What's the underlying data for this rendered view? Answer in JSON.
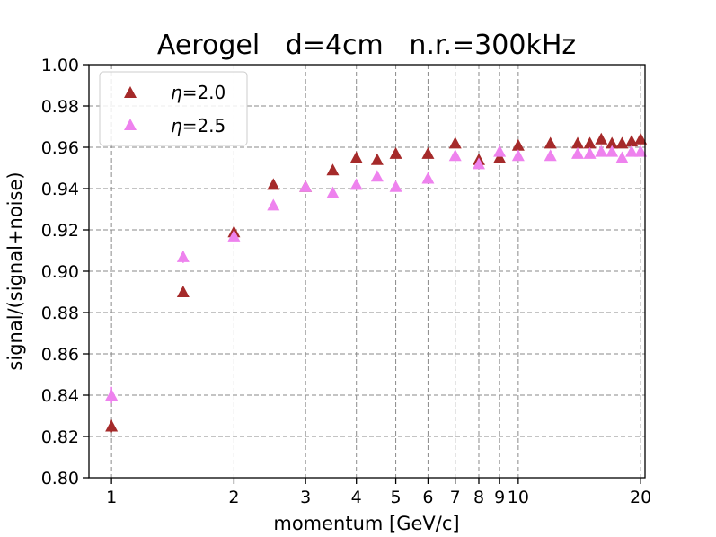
{
  "chart_data": {
    "type": "scatter",
    "title": "Aerogel   d=4cm   n.r.=300kHz",
    "xlabel": "momentum [GeV/c]",
    "ylabel": "signal/(signal+noise)",
    "xscale": "log",
    "xlim": [
      0.88,
      20.5
    ],
    "ylim": [
      0.8,
      1.0
    ],
    "xticks": [
      1,
      2,
      3,
      4,
      5,
      6,
      7,
      8,
      9,
      10,
      20
    ],
    "xtick_labels": [
      "1",
      "2",
      "3",
      "4",
      "5",
      "6",
      "7",
      "8",
      "9",
      "10",
      "20"
    ],
    "yticks": [
      0.8,
      0.82,
      0.84,
      0.86,
      0.88,
      0.9,
      0.92,
      0.94,
      0.96,
      0.98,
      1.0
    ],
    "ytick_labels": [
      "0.80",
      "0.82",
      "0.84",
      "0.86",
      "0.88",
      "0.90",
      "0.92",
      "0.94",
      "0.96",
      "0.98",
      "1.00"
    ],
    "grid": true,
    "legend_position": "top-left",
    "series": [
      {
        "name": "η=2.0",
        "legend_symbol": "η",
        "legend_value": "=2.0",
        "color": "#a52a2a",
        "marker": "triangle",
        "x": [
          1.0,
          1.5,
          2.0,
          2.5,
          3.0,
          3.5,
          4.0,
          4.5,
          5.0,
          6.0,
          7.0,
          8.0,
          9.0,
          10.0,
          12.0,
          14.0,
          15.0,
          16.0,
          17.0,
          18.0,
          19.0,
          20.0
        ],
        "y": [
          0.825,
          0.89,
          0.919,
          0.942,
          0.941,
          0.949,
          0.955,
          0.954,
          0.957,
          0.957,
          0.962,
          0.954,
          0.955,
          0.961,
          0.962,
          0.962,
          0.962,
          0.964,
          0.962,
          0.962,
          0.963,
          0.964
        ],
        "yerr": [
          0.003,
          0.002,
          0.001,
          0.001,
          0.001,
          0.001,
          0.001,
          0.001,
          0.001,
          0.001,
          0.001,
          0.001,
          0.001,
          0.001,
          0.001,
          0.001,
          0.001,
          0.001,
          0.001,
          0.001,
          0.001,
          0.001
        ]
      },
      {
        "name": "η=2.5",
        "legend_symbol": "η",
        "legend_value": "=2.5",
        "color": "#ee82ee",
        "marker": "triangle",
        "x": [
          1.0,
          1.5,
          2.0,
          2.5,
          3.0,
          3.5,
          4.0,
          4.5,
          5.0,
          6.0,
          7.0,
          8.0,
          9.0,
          10.0,
          12.0,
          14.0,
          15.0,
          16.0,
          17.0,
          18.0,
          19.0,
          20.0
        ],
        "y": [
          0.84,
          0.907,
          0.917,
          0.932,
          0.941,
          0.938,
          0.942,
          0.946,
          0.941,
          0.945,
          0.956,
          0.952,
          0.958,
          0.956,
          0.956,
          0.957,
          0.957,
          0.958,
          0.958,
          0.955,
          0.958,
          0.958
        ],
        "yerr": [
          0.004,
          0.003,
          0.002,
          0.001,
          0.001,
          0.001,
          0.001,
          0.001,
          0.001,
          0.001,
          0.001,
          0.001,
          0.001,
          0.001,
          0.001,
          0.001,
          0.001,
          0.001,
          0.001,
          0.001,
          0.001,
          0.001
        ]
      }
    ]
  }
}
